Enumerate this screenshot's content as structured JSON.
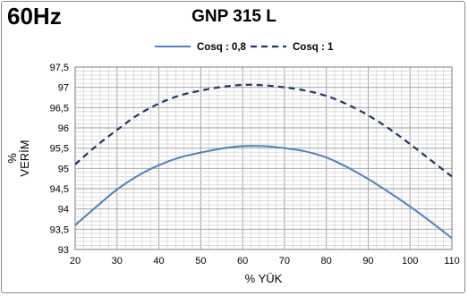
{
  "header": {
    "frequency_label": "60Hz"
  },
  "chart_data": {
    "type": "line",
    "title": "GNP 315 L",
    "xlabel": "% YÜK",
    "ylabel_lines": [
      "%",
      "VERİM"
    ],
    "xlim": [
      20,
      110
    ],
    "ylim": [
      93,
      97.5
    ],
    "x_ticks": [
      "20",
      "30",
      "40",
      "50",
      "60",
      "70",
      "80",
      "90",
      "100",
      "110"
    ],
    "y_ticks": [
      "93",
      "93,5",
      "94",
      "94,5",
      "95",
      "95,5",
      "96",
      "96,5",
      "97",
      "97,5"
    ],
    "grid": "on",
    "legend_position": "top",
    "series": [
      {
        "name": "Cosq : 0,8",
        "color": "#4f81bd",
        "style": "solid",
        "x": [
          20,
          25,
          30,
          35,
          40,
          45,
          50,
          55,
          60,
          65,
          70,
          75,
          80,
          85,
          90,
          95,
          100,
          105,
          110
        ],
        "y": [
          93.6,
          94.05,
          94.48,
          94.82,
          95.08,
          95.27,
          95.39,
          95.49,
          95.55,
          95.55,
          95.5,
          95.42,
          95.27,
          95.03,
          94.74,
          94.41,
          94.06,
          93.68,
          93.28
        ]
      },
      {
        "name": "Cosq : 1",
        "color": "#1f3864",
        "style": "dashed",
        "x": [
          20,
          25,
          30,
          35,
          40,
          45,
          50,
          55,
          60,
          65,
          70,
          75,
          80,
          85,
          90,
          95,
          100,
          105,
          110
        ],
        "y": [
          95.1,
          95.55,
          95.95,
          96.32,
          96.6,
          96.8,
          96.92,
          97.01,
          97.06,
          97.05,
          97.0,
          96.92,
          96.79,
          96.58,
          96.31,
          95.98,
          95.6,
          95.2,
          94.8
        ]
      }
    ]
  }
}
